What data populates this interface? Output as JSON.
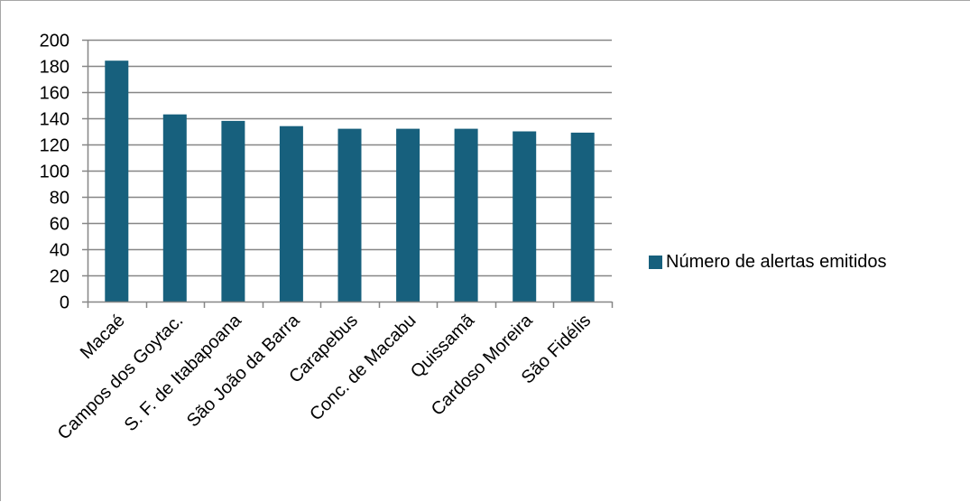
{
  "chart_data": {
    "type": "bar",
    "categories": [
      "Macaé",
      "Campos dos Goytac.",
      "S. F. de Itabapoana",
      "São João da Barra",
      "Carapebus",
      "Conc. de Macabu",
      "Quissamã",
      "Cardoso Moreira",
      "São Fidélis"
    ],
    "series": [
      {
        "name": "Número de alertas emitidos",
        "values": [
          184,
          143,
          138,
          134,
          132,
          132,
          132,
          130,
          129
        ],
        "color": "#17607d"
      }
    ],
    "title": "",
    "xlabel": "",
    "ylabel": "",
    "ylim": [
      0,
      200
    ],
    "yticks": [
      0,
      20,
      40,
      60,
      80,
      100,
      120,
      140,
      160,
      180,
      200
    ],
    "grid": true,
    "legend_position": "right"
  },
  "legend": {
    "label": "Número de alertas emitidos",
    "color": "#17607d"
  }
}
